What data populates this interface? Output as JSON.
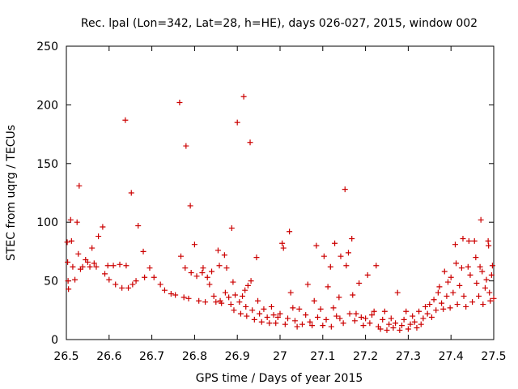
{
  "chart_data": {
    "type": "scatter",
    "title": "Rec. lpal (Lon=342, Lat=28, h=HE), days 026-027, 2015, window 002",
    "xlabel": "GPS time / Days of year 2015",
    "ylabel": "STEC from uqrg / TECUs",
    "xlim": [
      26.5,
      27.5
    ],
    "ylim": [
      0,
      250
    ],
    "xticks": [
      26.5,
      26.6,
      26.7,
      26.8,
      26.9,
      27,
      27.1,
      27.2,
      27.3,
      27.4,
      27.5
    ],
    "xtick_labels": [
      "26.5",
      "26.6",
      "26.7",
      "26.8",
      "26.9",
      "27",
      "27.1",
      "27.2",
      "27.3",
      "27.4",
      "27.5"
    ],
    "yticks": [
      0,
      50,
      100,
      150,
      200,
      250
    ],
    "ytick_labels": [
      "0",
      "50",
      "100",
      "150",
      "200",
      "250"
    ],
    "grid": false,
    "marker": "+",
    "marker_color": "#cc0000",
    "series": [
      {
        "name": "STEC",
        "points": [
          [
            26.502,
            83
          ],
          [
            26.503,
            66
          ],
          [
            26.504,
            50
          ],
          [
            26.505,
            43
          ],
          [
            26.51,
            102
          ],
          [
            26.512,
            84
          ],
          [
            26.515,
            62
          ],
          [
            26.52,
            51
          ],
          [
            26.525,
            100
          ],
          [
            26.528,
            73
          ],
          [
            26.53,
            131
          ],
          [
            26.533,
            60
          ],
          [
            26.538,
            62
          ],
          [
            26.545,
            68
          ],
          [
            26.55,
            66
          ],
          [
            26.555,
            62
          ],
          [
            26.56,
            78
          ],
          [
            26.565,
            65
          ],
          [
            26.57,
            62
          ],
          [
            26.575,
            88
          ],
          [
            26.585,
            96
          ],
          [
            26.59,
            56
          ],
          [
            26.597,
            63
          ],
          [
            26.6,
            51
          ],
          [
            26.61,
            63
          ],
          [
            26.615,
            47
          ],
          [
            26.625,
            64
          ],
          [
            26.63,
            44
          ],
          [
            26.638,
            187
          ],
          [
            26.64,
            63
          ],
          [
            26.645,
            44
          ],
          [
            26.652,
            125
          ],
          [
            26.655,
            47
          ],
          [
            26.663,
            50
          ],
          [
            26.668,
            97
          ],
          [
            26.68,
            75
          ],
          [
            26.683,
            53
          ],
          [
            26.695,
            61
          ],
          [
            26.705,
            53
          ],
          [
            26.72,
            47
          ],
          [
            26.73,
            42
          ],
          [
            26.745,
            39
          ],
          [
            26.755,
            38
          ],
          [
            26.765,
            202
          ],
          [
            26.768,
            71
          ],
          [
            26.775,
            36
          ],
          [
            26.778,
            61
          ],
          [
            26.78,
            165
          ],
          [
            26.786,
            35
          ],
          [
            26.79,
            114
          ],
          [
            26.792,
            57
          ],
          [
            26.8,
            81
          ],
          [
            26.805,
            54
          ],
          [
            26.81,
            33
          ],
          [
            26.818,
            57
          ],
          [
            26.82,
            61
          ],
          [
            26.825,
            32
          ],
          [
            26.83,
            53
          ],
          [
            26.835,
            47
          ],
          [
            26.84,
            58
          ],
          [
            26.845,
            37
          ],
          [
            26.85,
            32
          ],
          [
            26.855,
            76
          ],
          [
            26.858,
            63
          ],
          [
            26.86,
            33
          ],
          [
            26.863,
            31
          ],
          [
            26.87,
            72
          ],
          [
            26.872,
            40
          ],
          [
            26.875,
            61
          ],
          [
            26.88,
            36
          ],
          [
            26.885,
            30
          ],
          [
            26.887,
            95
          ],
          [
            26.89,
            49
          ],
          [
            26.892,
            25
          ],
          [
            26.895,
            38
          ],
          [
            26.9,
            185
          ],
          [
            26.905,
            32
          ],
          [
            26.908,
            22
          ],
          [
            26.912,
            37
          ],
          [
            26.915,
            207
          ],
          [
            26.918,
            42
          ],
          [
            26.92,
            28
          ],
          [
            26.922,
            20
          ],
          [
            26.925,
            46
          ],
          [
            26.93,
            168
          ],
          [
            26.932,
            50
          ],
          [
            26.935,
            25
          ],
          [
            26.94,
            17
          ],
          [
            26.945,
            70
          ],
          [
            26.948,
            33
          ],
          [
            26.952,
            22
          ],
          [
            26.957,
            15
          ],
          [
            26.962,
            26
          ],
          [
            26.97,
            19
          ],
          [
            26.975,
            14
          ],
          [
            26.98,
            28
          ],
          [
            26.985,
            21
          ],
          [
            26.99,
            14
          ],
          [
            26.995,
            19
          ],
          [
            27.0,
            22
          ],
          [
            27.005,
            82
          ],
          [
            27.008,
            78
          ],
          [
            27.012,
            13
          ],
          [
            27.018,
            18
          ],
          [
            27.022,
            92
          ],
          [
            27.025,
            40
          ],
          [
            27.03,
            27
          ],
          [
            27.035,
            16
          ],
          [
            27.04,
            11
          ],
          [
            27.045,
            26
          ],
          [
            27.052,
            13
          ],
          [
            27.06,
            21
          ],
          [
            27.065,
            47
          ],
          [
            27.07,
            15
          ],
          [
            27.075,
            12
          ],
          [
            27.08,
            33
          ],
          [
            27.085,
            80
          ],
          [
            27.088,
            19
          ],
          [
            27.095,
            26
          ],
          [
            27.1,
            12
          ],
          [
            27.103,
            71
          ],
          [
            27.108,
            17
          ],
          [
            27.112,
            45
          ],
          [
            27.118,
            62
          ],
          [
            27.12,
            11
          ],
          [
            27.125,
            27
          ],
          [
            27.128,
            82
          ],
          [
            27.132,
            20
          ],
          [
            27.138,
            36
          ],
          [
            27.14,
            18
          ],
          [
            27.142,
            71
          ],
          [
            27.148,
            14
          ],
          [
            27.152,
            128
          ],
          [
            27.155,
            63
          ],
          [
            27.16,
            74
          ],
          [
            27.163,
            22
          ],
          [
            27.168,
            86
          ],
          [
            27.17,
            38
          ],
          [
            27.175,
            16
          ],
          [
            27.178,
            22
          ],
          [
            27.185,
            48
          ],
          [
            27.19,
            19
          ],
          [
            27.195,
            12
          ],
          [
            27.2,
            18
          ],
          [
            27.205,
            55
          ],
          [
            27.21,
            14
          ],
          [
            27.215,
            21
          ],
          [
            27.22,
            24
          ],
          [
            27.225,
            63
          ],
          [
            27.23,
            11
          ],
          [
            27.235,
            9
          ],
          [
            27.24,
            17
          ],
          [
            27.245,
            24
          ],
          [
            27.25,
            8
          ],
          [
            27.255,
            13
          ],
          [
            27.26,
            18
          ],
          [
            27.265,
            10
          ],
          [
            27.27,
            14
          ],
          [
            27.275,
            40
          ],
          [
            27.28,
            8
          ],
          [
            27.285,
            12
          ],
          [
            27.29,
            17
          ],
          [
            27.295,
            24
          ],
          [
            27.3,
            9
          ],
          [
            27.305,
            13
          ],
          [
            27.31,
            20
          ],
          [
            27.315,
            15
          ],
          [
            27.32,
            10
          ],
          [
            27.325,
            24
          ],
          [
            27.33,
            13
          ],
          [
            27.335,
            18
          ],
          [
            27.34,
            28
          ],
          [
            27.345,
            22
          ],
          [
            27.35,
            30
          ],
          [
            27.355,
            19
          ],
          [
            27.36,
            34
          ],
          [
            27.365,
            25
          ],
          [
            27.37,
            40
          ],
          [
            27.373,
            45
          ],
          [
            27.378,
            31
          ],
          [
            27.382,
            26
          ],
          [
            27.385,
            58
          ],
          [
            27.39,
            37
          ],
          [
            27.393,
            49
          ],
          [
            27.398,
            27
          ],
          [
            27.4,
            53
          ],
          [
            27.405,
            40
          ],
          [
            27.41,
            81
          ],
          [
            27.412,
            65
          ],
          [
            27.415,
            30
          ],
          [
            27.42,
            46
          ],
          [
            27.425,
            61
          ],
          [
            27.428,
            86
          ],
          [
            27.43,
            37
          ],
          [
            27.435,
            28
          ],
          [
            27.44,
            62
          ],
          [
            27.442,
            84
          ],
          [
            27.445,
            55
          ],
          [
            27.45,
            32
          ],
          [
            27.455,
            84
          ],
          [
            27.458,
            70
          ],
          [
            27.46,
            48
          ],
          [
            27.465,
            37
          ],
          [
            27.468,
            62
          ],
          [
            27.47,
            102
          ],
          [
            27.473,
            58
          ],
          [
            27.475,
            30
          ],
          [
            27.48,
            44
          ],
          [
            27.483,
            51
          ],
          [
            27.487,
            84
          ],
          [
            27.488,
            80
          ],
          [
            27.49,
            40
          ],
          [
            27.492,
            33
          ],
          [
            27.495,
            55
          ],
          [
            27.497,
            63
          ],
          [
            27.5,
            35
          ]
        ]
      }
    ]
  }
}
